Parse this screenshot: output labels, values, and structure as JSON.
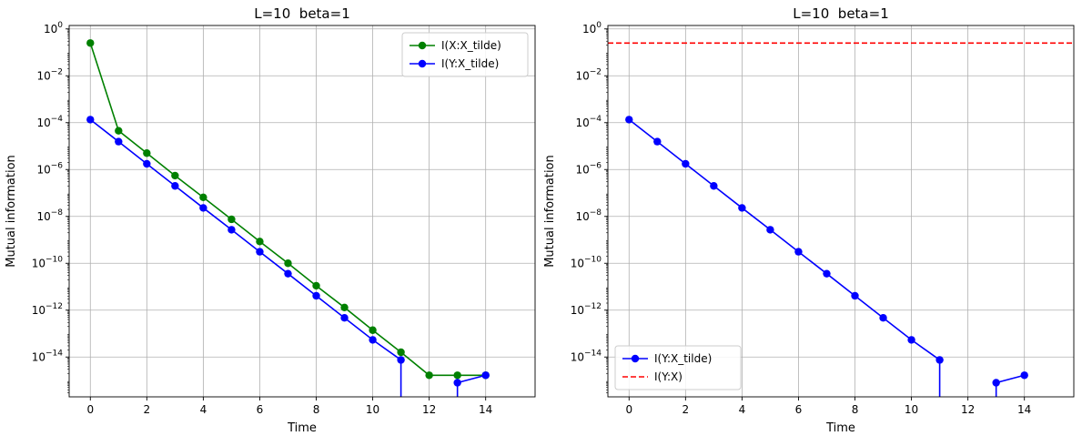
{
  "chart_data": [
    {
      "type": "line",
      "title": "L=10  beta=1",
      "xlabel": "Time",
      "ylabel": "Mutual information",
      "yscale": "log",
      "xlim": [
        -0.75,
        15.75
      ],
      "ylim": [
        2e-16,
        1.4
      ],
      "xticks": [
        0,
        2,
        4,
        6,
        8,
        10,
        12,
        14
      ],
      "yticks": [
        {
          "value": 1,
          "mant": "10",
          "exp": "0"
        },
        {
          "value": 0.01,
          "mant": "10",
          "exp": "−2"
        },
        {
          "value": 0.0001,
          "mant": "10",
          "exp": "−4"
        },
        {
          "value": 1e-06,
          "mant": "10",
          "exp": "−6"
        },
        {
          "value": 1e-08,
          "mant": "10",
          "exp": "−8"
        },
        {
          "value": 1e-10,
          "mant": "10",
          "exp": "−10"
        },
        {
          "value": 1e-12,
          "mant": "10",
          "exp": "−12"
        },
        {
          "value": 1e-14,
          "mant": "10",
          "exp": "−14"
        }
      ],
      "grid": true,
      "legend_position": "upper-right",
      "series": [
        {
          "name": "I(X:X_tilde)",
          "color": "#008000",
          "style": "solid",
          "marker": "circle",
          "x": [
            0,
            1,
            2,
            3,
            4,
            5,
            6,
            7,
            8,
            9,
            10,
            11,
            12,
            13,
            14
          ],
          "y": [
            0.25,
            4.5e-05,
            5e-06,
            5.5e-07,
            6.5e-08,
            7.5e-09,
            8.5e-10,
            1e-10,
            1.1e-11,
            1.3e-12,
            1.4e-13,
            1.6e-14,
            1.67e-15,
            1.67e-15,
            1.67e-15
          ]
        },
        {
          "name": "I(Y:X_tilde)",
          "color": "#0000ff",
          "style": "solid",
          "marker": "circle",
          "x": [
            0,
            1,
            2,
            3,
            4,
            5,
            6,
            7,
            8,
            9,
            10,
            11,
            12,
            13,
            14
          ],
          "y": [
            0.000135,
            1.55e-05,
            1.75e-06,
            2e-07,
            2.3e-08,
            2.7e-09,
            3.1e-10,
            3.6e-11,
            4.1e-12,
            4.7e-13,
            5.4e-14,
            7.5e-15,
            null,
            8e-16,
            1.67e-15
          ]
        }
      ]
    },
    {
      "type": "line",
      "title": "L=10  beta=1",
      "xlabel": "Time",
      "ylabel": "Mutual information",
      "yscale": "log",
      "xlim": [
        -0.75,
        15.75
      ],
      "ylim": [
        2e-16,
        1.4
      ],
      "xticks": [
        0,
        2,
        4,
        6,
        8,
        10,
        12,
        14
      ],
      "yticks": [
        {
          "value": 1,
          "mant": "10",
          "exp": "0"
        },
        {
          "value": 0.01,
          "mant": "10",
          "exp": "−2"
        },
        {
          "value": 0.0001,
          "mant": "10",
          "exp": "−4"
        },
        {
          "value": 1e-06,
          "mant": "10",
          "exp": "−6"
        },
        {
          "value": 1e-08,
          "mant": "10",
          "exp": "−8"
        },
        {
          "value": 1e-10,
          "mant": "10",
          "exp": "−10"
        },
        {
          "value": 1e-12,
          "mant": "10",
          "exp": "−12"
        },
        {
          "value": 1e-14,
          "mant": "10",
          "exp": "−14"
        }
      ],
      "grid": true,
      "legend_position": "lower-left",
      "series": [
        {
          "name": "I(Y:X_tilde)",
          "color": "#0000ff",
          "style": "solid",
          "marker": "circle",
          "x": [
            0,
            1,
            2,
            3,
            4,
            5,
            6,
            7,
            8,
            9,
            10,
            11,
            12,
            13,
            14
          ],
          "y": [
            0.000135,
            1.55e-05,
            1.75e-06,
            2e-07,
            2.3e-08,
            2.7e-09,
            3.1e-10,
            3.6e-11,
            4.1e-12,
            4.7e-13,
            5.4e-14,
            7.5e-15,
            null,
            8e-16,
            1.67e-15
          ]
        },
        {
          "name": "I(Y:X)",
          "color": "#ff0000",
          "style": "dashed",
          "marker": "none",
          "hline": 0.25
        }
      ]
    }
  ]
}
